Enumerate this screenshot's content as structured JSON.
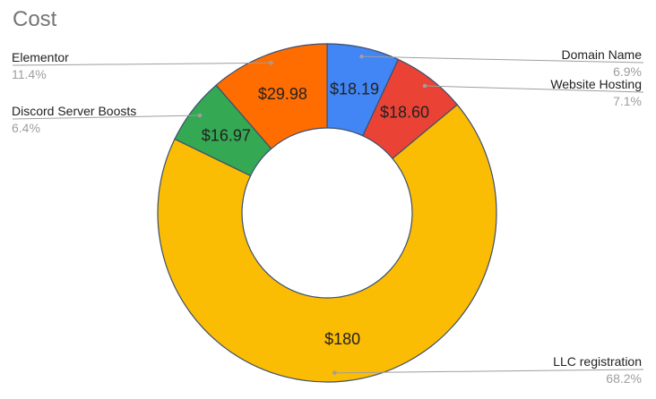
{
  "chart_data": {
    "type": "pie",
    "donut": true,
    "title": "Cost",
    "slices": [
      {
        "label": "Domain Name",
        "value": 18.19,
        "value_label": "$18.19",
        "percent": "6.9%",
        "color": "#4285f4"
      },
      {
        "label": "Website Hosting",
        "value": 18.6,
        "value_label": "$18.60",
        "percent": "7.1%",
        "color": "#ea4335"
      },
      {
        "label": "LLC registration",
        "value": 180,
        "value_label": "$180",
        "percent": "68.2%",
        "color": "#fbbc04"
      },
      {
        "label": "Discord Server Boosts",
        "value": 16.97,
        "value_label": "$16.97",
        "percent": "6.4%",
        "color": "#34a853"
      },
      {
        "label": "Elementor",
        "value": 29.98,
        "value_label": "$29.98",
        "percent": "11.4%",
        "color": "#ff6d01"
      }
    ],
    "legend_placement": "callouts"
  }
}
